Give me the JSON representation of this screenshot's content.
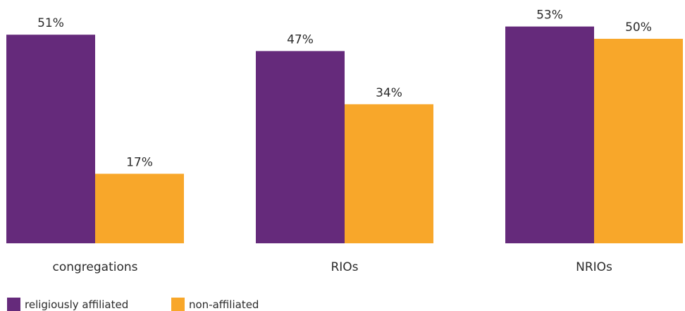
{
  "chart_data": {
    "type": "bar",
    "categories": [
      "congregations",
      "RIOs",
      "NRIOs"
    ],
    "series": [
      {
        "name": "religiously affiliated",
        "values": [
          51,
          47,
          53
        ],
        "color": "#652a7b"
      },
      {
        "name": "non-affiliated",
        "values": [
          17,
          34,
          50
        ],
        "color": "#f8a72a"
      }
    ],
    "value_suffix": "%",
    "ylim": [
      0,
      60
    ],
    "grid": false,
    "legend": "bottom-left"
  }
}
